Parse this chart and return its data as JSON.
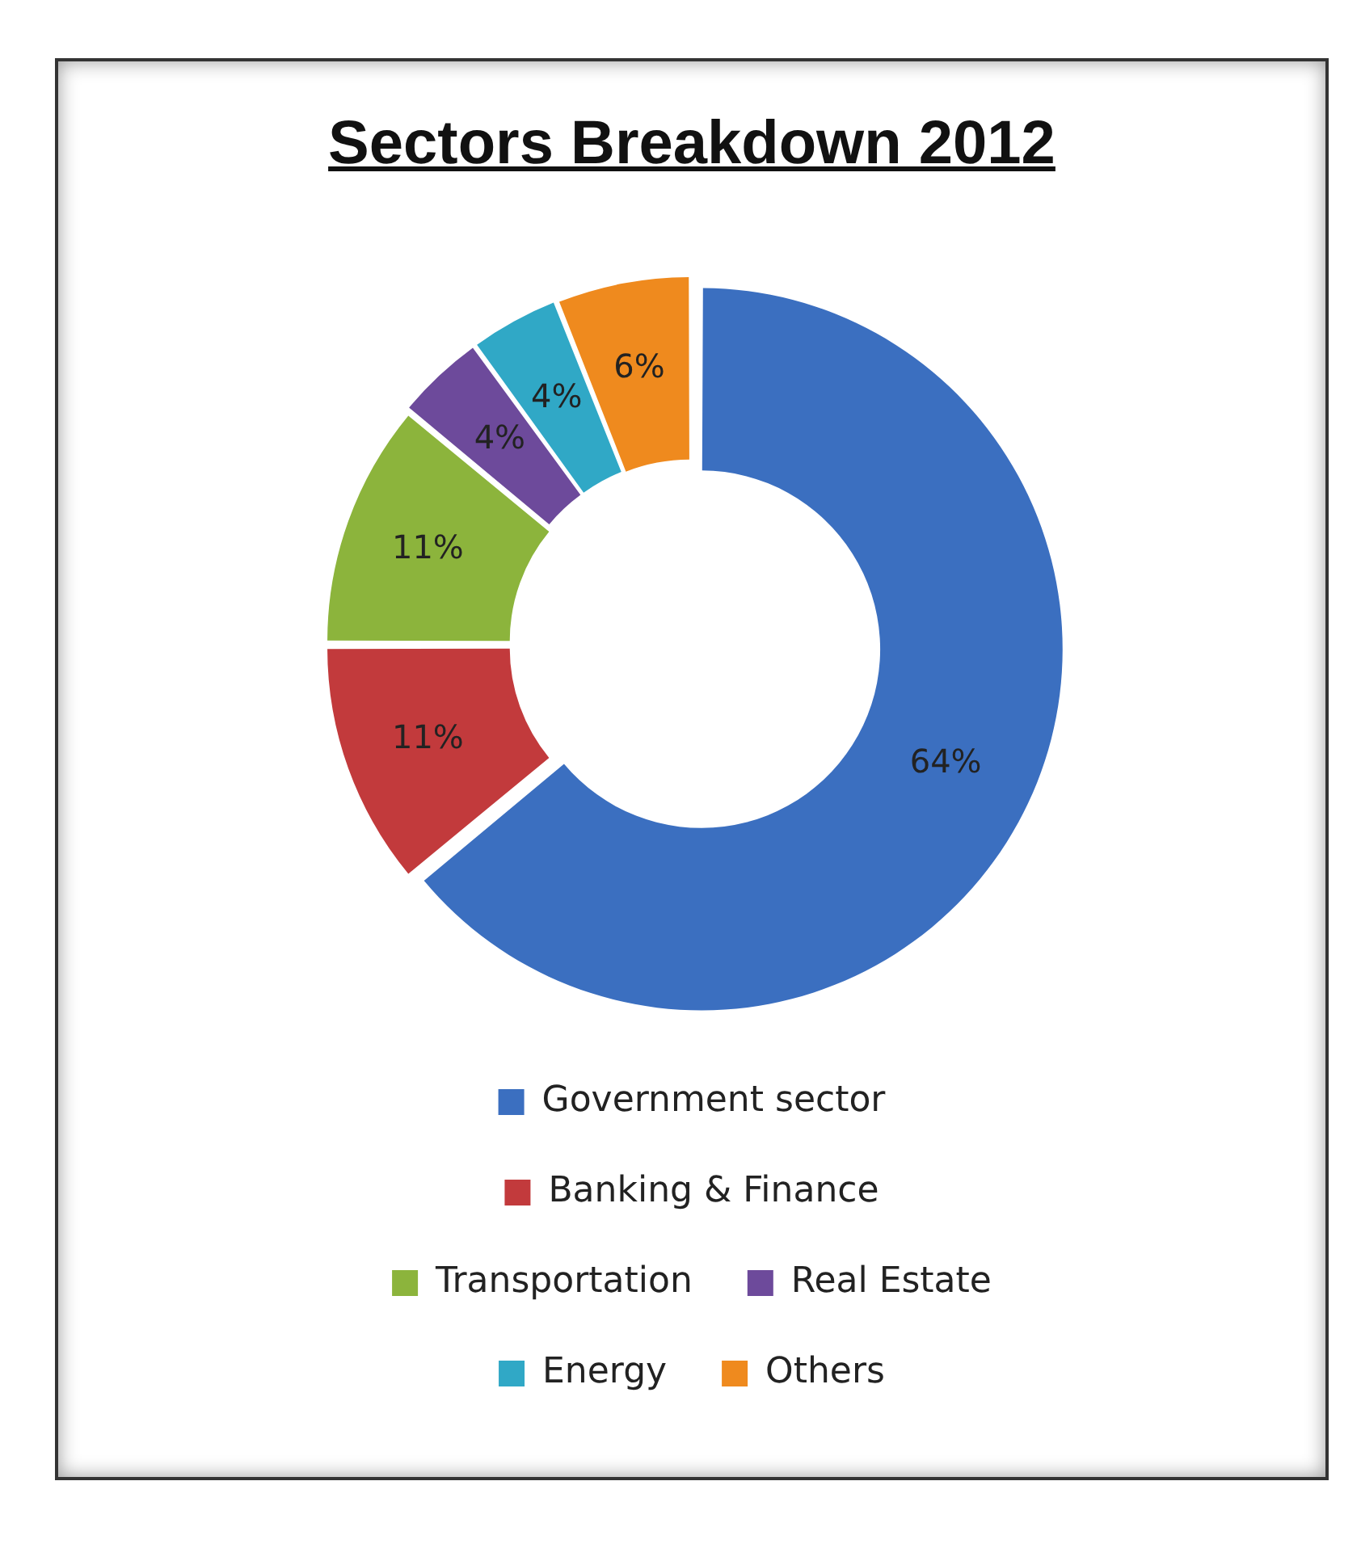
{
  "chart_data": {
    "type": "donut",
    "title": "Sectors Breakdown 2012",
    "categories": [
      "Government sector",
      "Banking & Finance",
      "Transportation",
      "Real Estate",
      "Energy",
      "Others"
    ],
    "values": [
      64,
      11,
      11,
      4,
      4,
      6
    ],
    "colors": [
      "#3b6fc0",
      "#c23a3c",
      "#8cb43c",
      "#6d4a9b",
      "#30a8c6",
      "#ef8a1e"
    ],
    "value_labels": [
      "64%",
      "11%",
      "11%",
      "4%",
      "4%",
      "6%"
    ],
    "legend": "bottom"
  }
}
